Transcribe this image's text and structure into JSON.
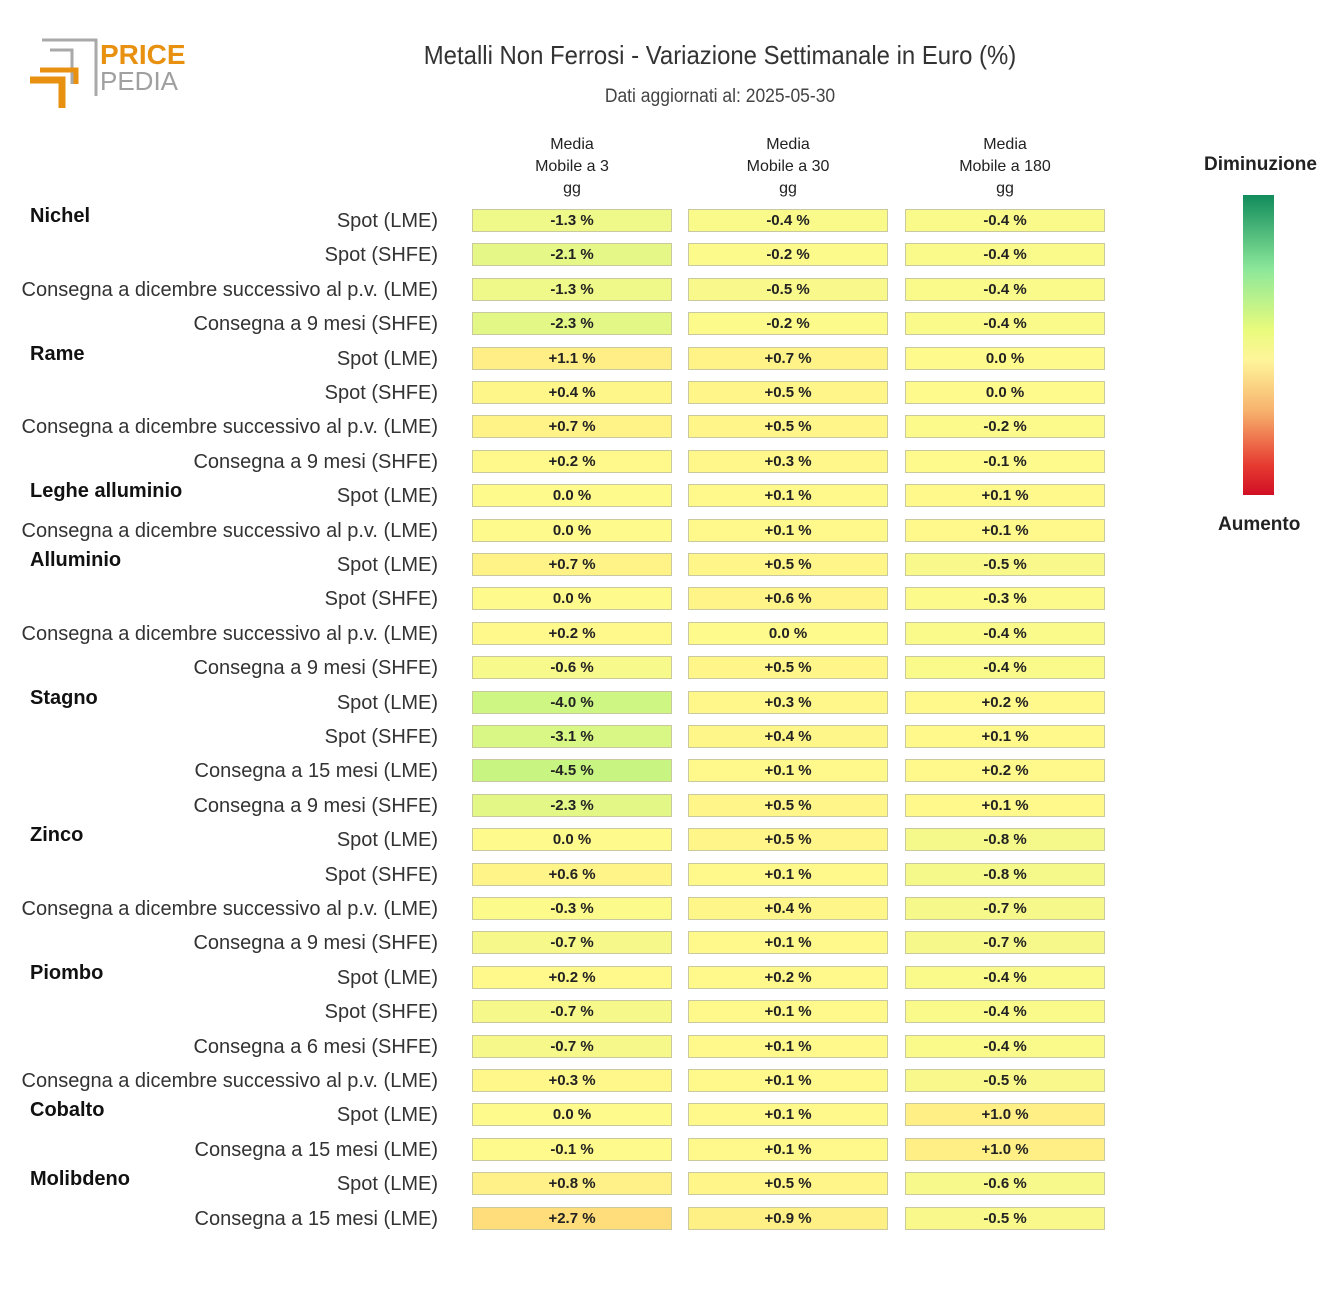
{
  "title": "Metalli Non Ferrosi - Variazione Settimanale in Euro (%)",
  "subtitle": "Dati aggiornati al: 2025-05-30",
  "logo": {
    "line1": "PRICE",
    "line2": "PEDIA",
    "accent": "#e8900f",
    "gray": "#a0a0a0"
  },
  "legend": {
    "top_label": "Diminuzione",
    "bottom_label": "Aumento"
  },
  "chart_data": {
    "type": "table",
    "columns": [
      "Media\nMobile a 3\ngg",
      "Media\nMobile a 30\ngg",
      "Media\nMobile a 180\ngg"
    ],
    "groups": [
      {
        "name": "Nichel",
        "rows": [
          {
            "label": "Spot (LME)",
            "values": [
              "-1.3 %",
              "-0.4 %",
              "-0.4 %"
            ]
          },
          {
            "label": "Spot (SHFE)",
            "values": [
              "-2.1 %",
              "-0.2 %",
              "-0.4 %"
            ]
          },
          {
            "label": "Consegna a dicembre successivo al p.v. (LME)",
            "values": [
              "-1.3 %",
              "-0.5 %",
              "-0.4 %"
            ]
          },
          {
            "label": "Consegna a 9 mesi (SHFE)",
            "values": [
              "-2.3 %",
              "-0.2 %",
              "-0.4 %"
            ]
          }
        ]
      },
      {
        "name": "Rame",
        "rows": [
          {
            "label": "Spot (LME)",
            "values": [
              "+1.1 %",
              "+0.7 %",
              "0.0 %"
            ]
          },
          {
            "label": "Spot (SHFE)",
            "values": [
              "+0.4 %",
              "+0.5 %",
              "0.0 %"
            ]
          },
          {
            "label": "Consegna a dicembre successivo al p.v. (LME)",
            "values": [
              "+0.7 %",
              "+0.5 %",
              "-0.2 %"
            ]
          },
          {
            "label": "Consegna a 9 mesi (SHFE)",
            "values": [
              "+0.2 %",
              "+0.3 %",
              "-0.1 %"
            ]
          }
        ]
      },
      {
        "name": "Leghe alluminio",
        "rows": [
          {
            "label": "Spot (LME)",
            "values": [
              "0.0 %",
              "+0.1 %",
              "+0.1 %"
            ]
          },
          {
            "label": "Consegna a dicembre successivo al p.v. (LME)",
            "values": [
              "0.0 %",
              "+0.1 %",
              "+0.1 %"
            ]
          }
        ]
      },
      {
        "name": "Alluminio",
        "rows": [
          {
            "label": "Spot (LME)",
            "values": [
              "+0.7 %",
              "+0.5 %",
              "-0.5 %"
            ]
          },
          {
            "label": "Spot (SHFE)",
            "values": [
              "0.0 %",
              "+0.6 %",
              "-0.3 %"
            ]
          },
          {
            "label": "Consegna a dicembre successivo al p.v. (LME)",
            "values": [
              "+0.2 %",
              "0.0 %",
              "-0.4 %"
            ]
          },
          {
            "label": "Consegna a 9 mesi (SHFE)",
            "values": [
              "-0.6 %",
              "+0.5 %",
              "-0.4 %"
            ]
          }
        ]
      },
      {
        "name": "Stagno",
        "rows": [
          {
            "label": "Spot (LME)",
            "values": [
              "-4.0 %",
              "+0.3 %",
              "+0.2 %"
            ]
          },
          {
            "label": "Spot (SHFE)",
            "values": [
              "-3.1 %",
              "+0.4 %",
              "+0.1 %"
            ]
          },
          {
            "label": "Consegna a 15 mesi (LME)",
            "values": [
              "-4.5 %",
              "+0.1 %",
              "+0.2 %"
            ]
          },
          {
            "label": "Consegna a 9 mesi (SHFE)",
            "values": [
              "-2.3 %",
              "+0.5 %",
              "+0.1 %"
            ]
          }
        ]
      },
      {
        "name": "Zinco",
        "rows": [
          {
            "label": "Spot (LME)",
            "values": [
              "0.0 %",
              "+0.5 %",
              "-0.8 %"
            ]
          },
          {
            "label": "Spot (SHFE)",
            "values": [
              "+0.6 %",
              "+0.1 %",
              "-0.8 %"
            ]
          },
          {
            "label": "Consegna a dicembre successivo al p.v. (LME)",
            "values": [
              "-0.3 %",
              "+0.4 %",
              "-0.7 %"
            ]
          },
          {
            "label": "Consegna a 9 mesi (SHFE)",
            "values": [
              "-0.7 %",
              "+0.1 %",
              "-0.7 %"
            ]
          }
        ]
      },
      {
        "name": "Piombo",
        "rows": [
          {
            "label": "Spot (LME)",
            "values": [
              "+0.2 %",
              "+0.2 %",
              "-0.4 %"
            ]
          },
          {
            "label": "Spot (SHFE)",
            "values": [
              "-0.7 %",
              "+0.1 %",
              "-0.4 %"
            ]
          },
          {
            "label": "Consegna a 6 mesi (SHFE)",
            "values": [
              "-0.7 %",
              "+0.1 %",
              "-0.4 %"
            ]
          },
          {
            "label": "Consegna a dicembre successivo al p.v. (LME)",
            "values": [
              "+0.3 %",
              "+0.1 %",
              "-0.5 %"
            ]
          }
        ]
      },
      {
        "name": "Cobalto",
        "rows": [
          {
            "label": "Spot (LME)",
            "values": [
              "0.0 %",
              "+0.1 %",
              "+1.0 %"
            ]
          },
          {
            "label": "Consegna a 15 mesi (LME)",
            "values": [
              "-0.1 %",
              "+0.1 %",
              "+1.0 %"
            ]
          }
        ]
      },
      {
        "name": "Molibdeno",
        "rows": [
          {
            "label": "Spot (LME)",
            "values": [
              "+0.8 %",
              "+0.5 %",
              "-0.6 %"
            ]
          },
          {
            "label": "Consegna a 15 mesi (LME)",
            "values": [
              "+2.7 %",
              "+0.9 %",
              "-0.5 %"
            ]
          }
        ]
      }
    ]
  }
}
